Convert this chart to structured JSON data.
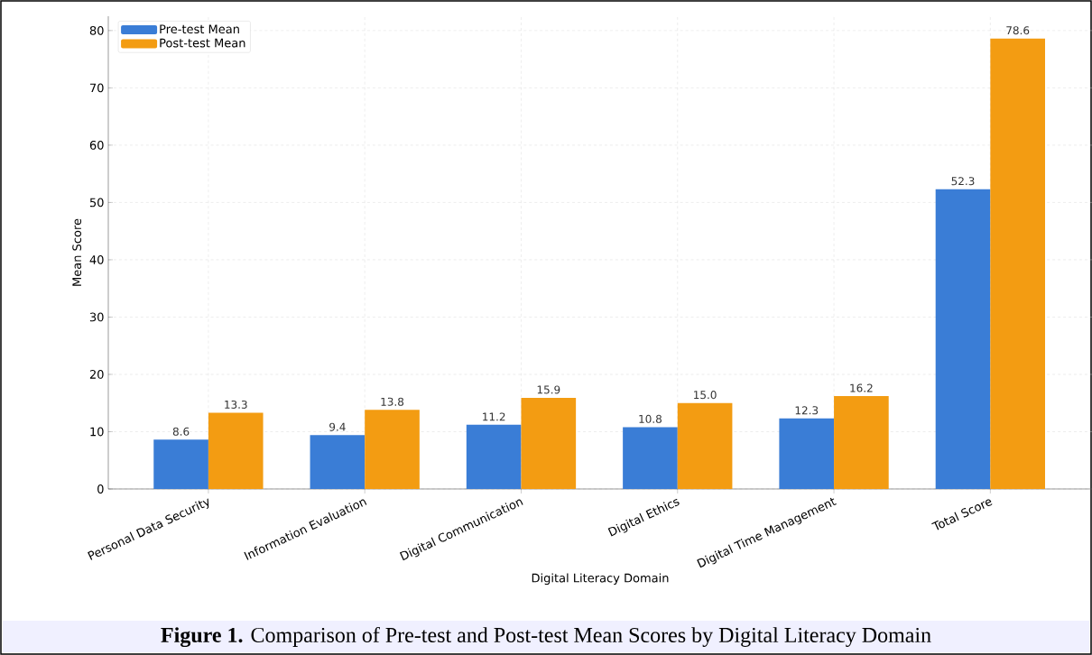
{
  "chart_data": {
    "type": "bar",
    "xlabel": "Digital Literacy Domain",
    "ylabel": "Mean Score",
    "categories": [
      "Personal Data Security",
      "Information Evaluation",
      "Digital Communication",
      "Digital Ethics",
      "Digital Time Management",
      "Total Score"
    ],
    "series": [
      {
        "name": "Pre-test Mean",
        "color": "#3a7dd6",
        "values": [
          8.6,
          9.4,
          11.2,
          10.8,
          12.3,
          52.3
        ],
        "value_labels": [
          "8.6",
          "9.4",
          "11.2",
          "10.8",
          "12.3",
          "52.3"
        ]
      },
      {
        "name": "Post-test Mean",
        "color": "#f39c12",
        "values": [
          13.3,
          13.8,
          15.9,
          15.0,
          16.2,
          78.6
        ],
        "value_labels": [
          "13.3",
          "13.8",
          "15.9",
          "15.0",
          "16.2",
          "78.6"
        ]
      }
    ],
    "ylim": [
      0,
      82.5
    ],
    "yticks": [
      0,
      10,
      20,
      30,
      40,
      50,
      60,
      70,
      80
    ],
    "grid": true,
    "legend": "top left",
    "annotations": [
      "**Figure 1.** Comparison of Pre-test and Post-test Mean Scores by Digital Literacy Domain"
    ]
  }
}
